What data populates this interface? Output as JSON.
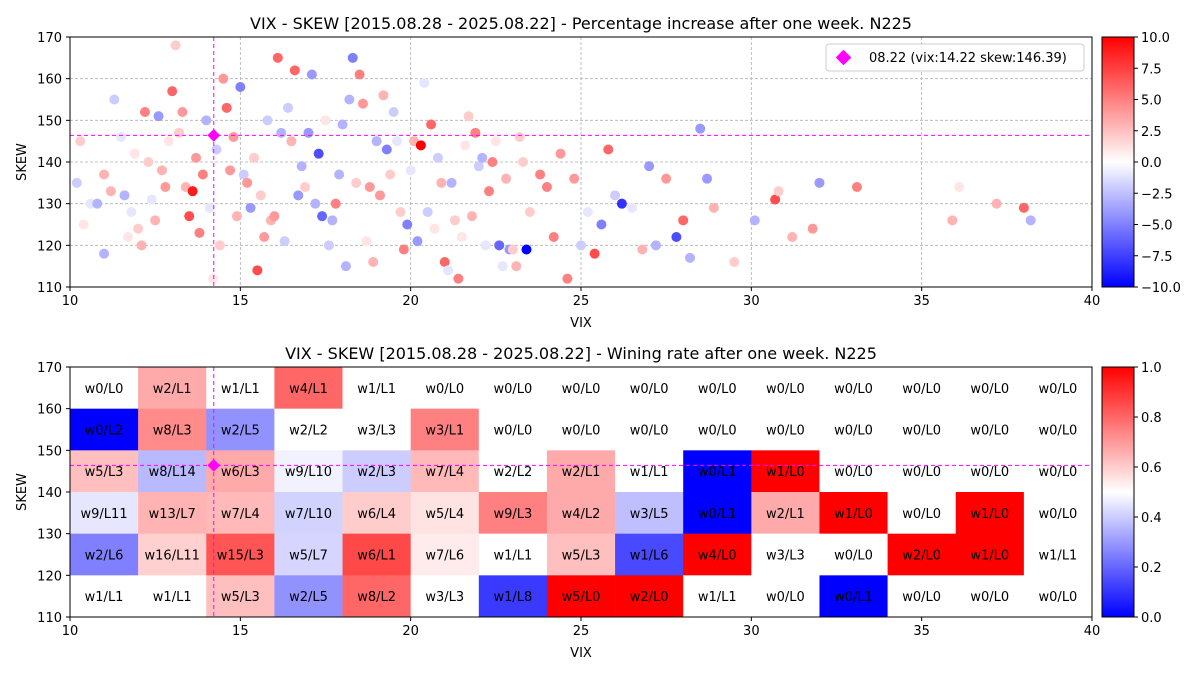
{
  "chart_data": [
    {
      "type": "scatter",
      "title": "VIX - SKEW [2015.08.28 - 2025.08.22]  - Percentage increase after one week. N225",
      "xlabel": "VIX",
      "ylabel": "SKEW",
      "xlim": [
        10,
        40
      ],
      "ylim": [
        110,
        170
      ],
      "xticks": [
        10,
        15,
        20,
        25,
        30,
        35,
        40
      ],
      "yticks": [
        110,
        120,
        130,
        140,
        150,
        160,
        170
      ],
      "grid": true,
      "legend_position": "top-right",
      "colorbar": {
        "min": -10,
        "max": 10,
        "ticks": [
          "10.0",
          "7.5",
          "5.0",
          "2.5",
          "0.0",
          "−2.5",
          "−5.0",
          "−7.5",
          "−10.0"
        ],
        "colormap": "bwr"
      },
      "current": {
        "label": "08.22 (vix:14.22 skew:146.39)",
        "vix": 14.22,
        "skew": 146.39,
        "color": "#ff00ff"
      },
      "points": [
        [
          10.2,
          135,
          -2
        ],
        [
          10.3,
          145,
          2
        ],
        [
          10.4,
          125,
          1
        ],
        [
          10.6,
          130,
          -1
        ],
        [
          10.8,
          130,
          -3
        ],
        [
          11.0,
          118,
          -3
        ],
        [
          11.0,
          137,
          3
        ],
        [
          11.2,
          133,
          3
        ],
        [
          11.3,
          155,
          -2
        ],
        [
          11.5,
          146,
          -1
        ],
        [
          11.6,
          132,
          -3
        ],
        [
          11.7,
          122,
          1
        ],
        [
          11.8,
          128,
          -1
        ],
        [
          11.9,
          142,
          1
        ],
        [
          12.0,
          124,
          2
        ],
        [
          12.1,
          120,
          3
        ],
        [
          12.2,
          152,
          5
        ],
        [
          12.3,
          140,
          2
        ],
        [
          12.4,
          131,
          -1
        ],
        [
          12.5,
          126,
          3
        ],
        [
          12.6,
          151,
          -4
        ],
        [
          12.7,
          138,
          3
        ],
        [
          12.8,
          134,
          4
        ],
        [
          12.9,
          145,
          1
        ],
        [
          13.0,
          157,
          6
        ],
        [
          13.1,
          168,
          2
        ],
        [
          13.2,
          147,
          2
        ],
        [
          13.3,
          152,
          4
        ],
        [
          13.4,
          134,
          3
        ],
        [
          13.5,
          127,
          7
        ],
        [
          13.6,
          133,
          9
        ],
        [
          13.7,
          141,
          4
        ],
        [
          13.8,
          123,
          5
        ],
        [
          13.9,
          137,
          5
        ],
        [
          14.0,
          150,
          -3
        ],
        [
          14.1,
          129,
          -1
        ],
        [
          14.2,
          112,
          1
        ],
        [
          14.3,
          143,
          -2
        ],
        [
          14.4,
          120,
          2
        ],
        [
          14.5,
          160,
          4
        ],
        [
          14.6,
          153,
          6
        ],
        [
          14.7,
          138,
          4
        ],
        [
          14.8,
          146,
          4
        ],
        [
          14.9,
          127,
          3
        ],
        [
          15.0,
          158,
          -5
        ],
        [
          15.1,
          137,
          -2
        ],
        [
          15.2,
          135,
          4
        ],
        [
          15.3,
          129,
          -4
        ],
        [
          15.4,
          141,
          2
        ],
        [
          15.5,
          114,
          7
        ],
        [
          15.6,
          132,
          2
        ],
        [
          15.7,
          122,
          4
        ],
        [
          15.8,
          150,
          -2
        ],
        [
          15.9,
          126,
          3
        ],
        [
          16.0,
          127,
          4
        ],
        [
          16.1,
          165,
          6
        ],
        [
          16.2,
          147,
          -3
        ],
        [
          16.3,
          121,
          -2
        ],
        [
          16.4,
          153,
          -2
        ],
        [
          16.5,
          145,
          3
        ],
        [
          16.6,
          162,
          6
        ],
        [
          16.7,
          132,
          -4
        ],
        [
          16.8,
          139,
          -3
        ],
        [
          16.9,
          134,
          2
        ],
        [
          17.0,
          147,
          -4
        ],
        [
          17.1,
          161,
          -4
        ],
        [
          17.2,
          130,
          -3
        ],
        [
          17.3,
          142,
          -7
        ],
        [
          17.4,
          127,
          -6
        ],
        [
          17.5,
          150,
          1
        ],
        [
          17.6,
          120,
          -2
        ],
        [
          17.7,
          126,
          -3
        ],
        [
          17.8,
          130,
          5
        ],
        [
          17.9,
          137,
          -3
        ],
        [
          18.0,
          149,
          -3
        ],
        [
          18.1,
          115,
          -3
        ],
        [
          18.2,
          155,
          -3
        ],
        [
          18.3,
          165,
          -5
        ],
        [
          18.4,
          135,
          2
        ],
        [
          18.5,
          161,
          5
        ],
        [
          18.6,
          154,
          4
        ],
        [
          18.7,
          121,
          1
        ],
        [
          18.8,
          134,
          4
        ],
        [
          18.9,
          116,
          3
        ],
        [
          19.0,
          145,
          -3
        ],
        [
          19.1,
          132,
          4
        ],
        [
          19.2,
          156,
          3
        ],
        [
          19.3,
          143,
          -5
        ],
        [
          19.4,
          137,
          2
        ],
        [
          19.5,
          152,
          -2
        ],
        [
          19.6,
          145,
          -1
        ],
        [
          19.7,
          128,
          2
        ],
        [
          19.8,
          119,
          5
        ],
        [
          19.9,
          125,
          -5
        ],
        [
          20.0,
          138,
          -1
        ],
        [
          20.1,
          145,
          3
        ],
        [
          20.2,
          121,
          -4
        ],
        [
          20.3,
          144,
          10
        ],
        [
          20.4,
          159,
          -1
        ],
        [
          20.5,
          128,
          -2
        ],
        [
          20.6,
          149,
          6
        ],
        [
          20.7,
          124,
          1
        ],
        [
          20.8,
          141,
          -2
        ],
        [
          20.9,
          135,
          3
        ],
        [
          21.0,
          116,
          6
        ],
        [
          21.1,
          114,
          -1
        ],
        [
          21.2,
          135,
          -3
        ],
        [
          21.3,
          126,
          2
        ],
        [
          21.4,
          112,
          5
        ],
        [
          21.5,
          122,
          1
        ],
        [
          21.6,
          144,
          1
        ],
        [
          21.7,
          151,
          2
        ],
        [
          21.8,
          127,
          3
        ],
        [
          21.9,
          147,
          5
        ],
        [
          22.0,
          139,
          -2
        ],
        [
          22.1,
          141,
          -3
        ],
        [
          22.2,
          120,
          -1
        ],
        [
          22.3,
          133,
          5
        ],
        [
          22.4,
          140,
          5
        ],
        [
          22.5,
          145,
          1
        ],
        [
          22.6,
          120,
          -6
        ],
        [
          22.7,
          115,
          -1
        ],
        [
          22.8,
          136,
          3
        ],
        [
          22.9,
          119,
          -4
        ],
        [
          23.0,
          119,
          2
        ],
        [
          23.1,
          115,
          3
        ],
        [
          23.2,
          146,
          2
        ],
        [
          23.3,
          140,
          2
        ],
        [
          23.4,
          119,
          -10
        ],
        [
          23.5,
          128,
          2
        ],
        [
          23.8,
          137,
          5
        ],
        [
          24.0,
          134,
          5
        ],
        [
          24.2,
          122,
          5
        ],
        [
          24.4,
          142,
          4
        ],
        [
          24.6,
          112,
          5
        ],
        [
          24.8,
          136,
          4
        ],
        [
          25.0,
          120,
          -2
        ],
        [
          25.2,
          128,
          -1
        ],
        [
          25.4,
          118,
          7
        ],
        [
          25.6,
          125,
          -5
        ],
        [
          25.8,
          143,
          6
        ],
        [
          26.0,
          132,
          -2
        ],
        [
          26.2,
          130,
          -8
        ],
        [
          26.5,
          129,
          -1
        ],
        [
          26.8,
          119,
          3
        ],
        [
          27.0,
          139,
          -4
        ],
        [
          27.2,
          120,
          -3
        ],
        [
          27.5,
          136,
          4
        ],
        [
          27.8,
          122,
          -7
        ],
        [
          28.0,
          126,
          6
        ],
        [
          28.2,
          117,
          -3
        ],
        [
          28.5,
          148,
          -4
        ],
        [
          28.7,
          136,
          -4
        ],
        [
          28.9,
          129,
          3
        ],
        [
          29.5,
          116,
          2
        ],
        [
          30.1,
          126,
          -3
        ],
        [
          30.7,
          131,
          7
        ],
        [
          30.8,
          133,
          2
        ],
        [
          31.2,
          122,
          3
        ],
        [
          31.8,
          124,
          4
        ],
        [
          32.0,
          135,
          -4
        ],
        [
          33.1,
          134,
          5
        ],
        [
          35.9,
          126,
          3
        ],
        [
          36.1,
          134,
          1
        ],
        [
          37.2,
          130,
          3
        ],
        [
          38.0,
          129,
          6
        ],
        [
          38.2,
          126,
          -3
        ]
      ]
    },
    {
      "type": "heatmap",
      "title": "VIX - SKEW [2015.08.28 - 2025.08.22]  - Wining rate after one week. N225",
      "xlabel": "VIX",
      "ylabel": "SKEW",
      "xlim": [
        10,
        40
      ],
      "ylim": [
        110,
        170
      ],
      "xticks": [
        10,
        15,
        20,
        25,
        30,
        35,
        40
      ],
      "yticks": [
        110,
        120,
        130,
        140,
        150,
        160,
        170
      ],
      "bin_width_x": 2,
      "bin_width_y": 10,
      "colorbar": {
        "min": 0,
        "max": 1,
        "ticks": [
          "1.0",
          "0.8",
          "0.6",
          "0.4",
          "0.2",
          "0.0"
        ],
        "colormap": "bwr"
      },
      "current": {
        "vix": 14.22,
        "skew": 146.39,
        "color": "#ff00ff"
      },
      "rows_top_to_bottom": [
        [
          "w0/L0",
          "w2/L1",
          "w1/L1",
          "w4/L1",
          "w1/L1",
          "w0/L0",
          "w0/L0",
          "w0/L0",
          "w0/L0",
          "w0/L0",
          "w0/L0",
          "w0/L0",
          "w0/L0",
          "w0/L0",
          "w0/L0"
        ],
        [
          "w0/L2",
          "w8/L3",
          "w2/L5",
          "w2/L2",
          "w3/L3",
          "w3/L1",
          "w0/L0",
          "w0/L0",
          "w0/L0",
          "w0/L0",
          "w0/L0",
          "w0/L0",
          "w0/L0",
          "w0/L0",
          "w0/L0"
        ],
        [
          "w5/L3",
          "w8/L14",
          "w6/L3",
          "w9/L10",
          "w2/L3",
          "w7/L4",
          "w2/L2",
          "w2/L1",
          "w1/L1",
          "w0/L1",
          "w1/L0",
          "w0/L0",
          "w0/L0",
          "w0/L0",
          "w0/L0"
        ],
        [
          "w9/L11",
          "w13/L7",
          "w7/L4",
          "w7/L10",
          "w6/L4",
          "w5/L4",
          "w9/L3",
          "w4/L2",
          "w3/L5",
          "w0/L1",
          "w2/L1",
          "w1/L0",
          "w0/L0",
          "w1/L0",
          "w0/L0"
        ],
        [
          "w2/L6",
          "w16/L11",
          "w15/L3",
          "w5/L7",
          "w6/L1",
          "w7/L6",
          "w1/L1",
          "w5/L3",
          "w1/L6",
          "w4/L0",
          "w3/L3",
          "w0/L0",
          "w2/L0",
          "w1/L0",
          "w1/L1"
        ],
        [
          "w1/L1",
          "w1/L1",
          "w5/L3",
          "w2/L5",
          "w8/L2",
          "w3/L3",
          "w1/L8",
          "w5/L0",
          "w2/L0",
          "w1/L1",
          "w0/L0",
          "w0/L1",
          "w0/L0",
          "w0/L0",
          "w0/L0"
        ]
      ]
    }
  ]
}
